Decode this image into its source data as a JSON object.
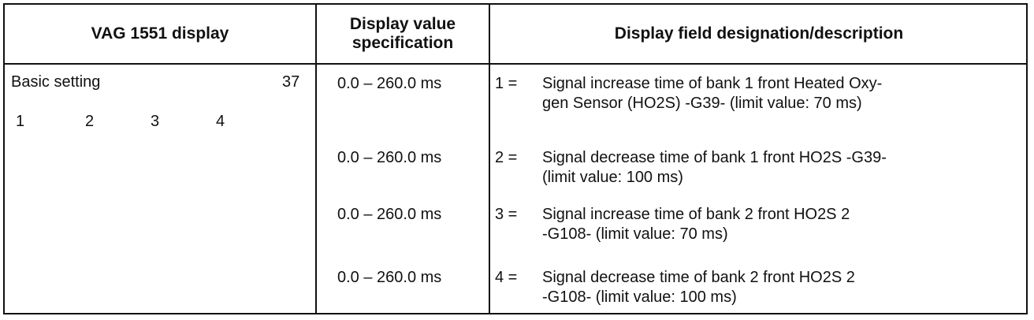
{
  "headers": {
    "col1": "VAG 1551 display",
    "col2_line1": "Display value",
    "col2_line2": "specification",
    "col3": "Display field designation/description"
  },
  "left": {
    "basic_setting": "Basic setting",
    "group": "37",
    "fields": [
      "1",
      "2",
      "3",
      "4"
    ]
  },
  "rows": [
    {
      "spec": "0.0 – 260.0 ms",
      "num": "1 =",
      "line1": "Signal increase time of bank 1 front Heated Oxy-",
      "line2": "gen Sensor (HO2S) -G39- (limit value: 70 ms)"
    },
    {
      "spec": "0.0 – 260.0 ms",
      "num": "2 =",
      "line1": "Signal decrease time of bank 1 front HO2S -G39-",
      "line2": "(limit value: 100 ms)"
    },
    {
      "spec": "0.0 – 260.0 ms",
      "num": "3 =",
      "line1": "Signal increase time of bank 2 front HO2S 2",
      "line2": "-G108- (limit value: 70 ms)"
    },
    {
      "spec": "0.0 – 260.0 ms",
      "num": "4 =",
      "line1": "Signal decrease time of bank 2 front HO2S 2",
      "line2": "-G108- (limit value: 100 ms)"
    }
  ]
}
